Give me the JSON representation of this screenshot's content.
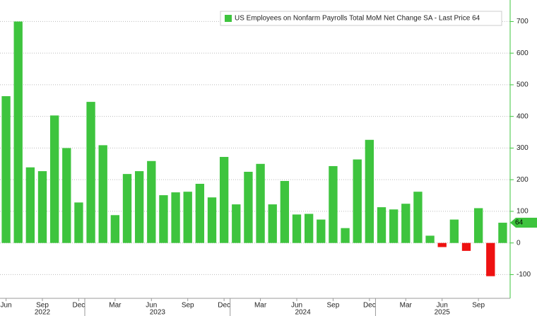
{
  "chart_data": {
    "type": "bar",
    "series": [
      {
        "name": "US Employees on Nonfarm Payrolls Total MoM Net Change SA - Last Price 64",
        "color": "#3ec43e",
        "negative_color": "#ee1111",
        "values": [
          464,
          700,
          239,
          227,
          403,
          300,
          128,
          446,
          309,
          88,
          218,
          227,
          259,
          151,
          160,
          162,
          187,
          144,
          272,
          122,
          225,
          250,
          122,
          196,
          90,
          92,
          74,
          243,
          47,
          264,
          326,
          113,
          106,
          124,
          162,
          23,
          -13,
          74,
          -25,
          110,
          -105,
          64
        ]
      }
    ],
    "categories": [
      "Jun",
      null,
      null,
      "Sep",
      null,
      null,
      "Dec",
      null,
      null,
      "Mar",
      null,
      null,
      "Jun",
      null,
      null,
      "Sep",
      null,
      null,
      "Dec",
      null,
      null,
      "Mar",
      null,
      null,
      "Jun",
      null,
      null,
      "Sep",
      null,
      null,
      "Dec",
      null,
      null,
      "Mar",
      null,
      null,
      "Jun",
      null,
      null,
      "Sep",
      null,
      null
    ],
    "x_groups": [
      {
        "label": "2022",
        "start": 0,
        "end": 6
      },
      {
        "label": "2023",
        "start": 7,
        "end": 18
      },
      {
        "label": "2024",
        "start": 19,
        "end": 30
      },
      {
        "label": "2025",
        "start": 31,
        "end": 41
      }
    ],
    "ylim": [
      -175,
      768
    ],
    "yticks": [
      -100,
      0,
      100,
      200,
      300,
      400,
      500,
      600,
      700
    ],
    "grid": true,
    "legend": "top-center"
  }
}
